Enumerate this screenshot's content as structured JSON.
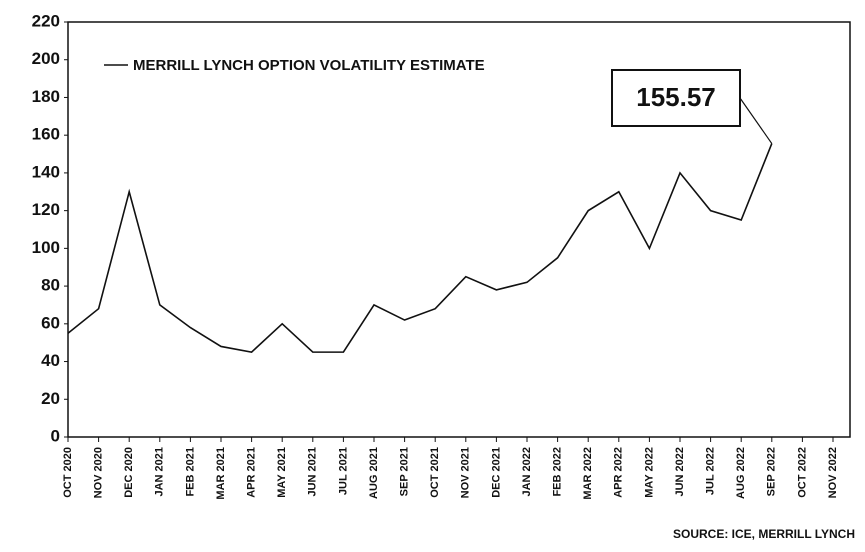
{
  "chart_data": {
    "type": "line",
    "x": [
      "OCT 2020",
      "NOV 2020",
      "DEC 2020",
      "JAN 2021",
      "FEB 2021",
      "MAR 2021",
      "APR 2021",
      "MAY 2021",
      "JUN 2021",
      "JUL 2021",
      "AUG 2021",
      "SEP 2021",
      "OCT 2021",
      "NOV 2021",
      "DEC 2021",
      "JAN 2022",
      "FEB 2022",
      "MAR 2022",
      "APR 2022",
      "MAY 2022",
      "JUN 2022",
      "JUL 2022",
      "AUG 2022",
      "SEP 2022",
      "OCT 2022",
      "NOV 2022"
    ],
    "series": [
      {
        "name": "MERRILL LYNCH OPTION VOLATILITY ESTIMATE",
        "color": "#111111",
        "values": [
          55,
          68,
          130,
          70,
          58,
          48,
          45,
          60,
          45,
          45,
          70,
          62,
          68,
          85,
          78,
          82,
          95,
          120,
          130,
          100,
          140,
          120,
          115,
          155.57,
          null,
          null
        ],
        "value_labels": [
          null,
          null,
          null,
          null,
          null,
          null,
          null,
          null,
          null,
          null,
          null,
          null,
          null,
          null,
          null,
          null,
          null,
          null,
          null,
          null,
          null,
          null,
          null,
          "155.57",
          null,
          null
        ]
      }
    ],
    "ylim": [
      0,
      220
    ],
    "yticks": [
      0,
      20,
      40,
      60,
      80,
      100,
      120,
      140,
      160,
      180,
      200,
      220
    ],
    "source": "SOURCE: ICE, MERRILL LYNCH"
  }
}
